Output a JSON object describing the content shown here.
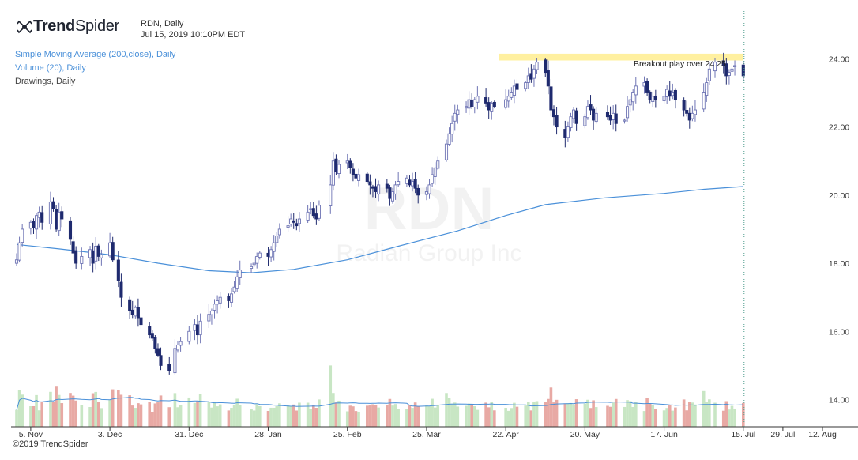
{
  "brand": {
    "name_bold": "Trend",
    "name_light": "Spider",
    "copyright": "©2019 TrendSpider"
  },
  "header": {
    "symbol_line": "RDN, Daily",
    "timestamp": "Jul 15, 2019 10:10PM EDT"
  },
  "indicators": [
    {
      "label": "Simple Moving Average (200,close), Daily",
      "color": "#4a90d9"
    },
    {
      "label": "Volume (20), Daily",
      "color": "#4a90d9"
    },
    {
      "label": "Drawings, Daily",
      "color": "#444444"
    }
  ],
  "watermark": {
    "ticker": "RDN",
    "company": "Radian Group Inc"
  },
  "colors": {
    "up": "#6e74b4",
    "down": "#1f2a6e",
    "sma": "#4a90d9",
    "vol_up": "#c8e6c4",
    "vol_down": "#e8a9a4",
    "zone": "#fff0a0"
  },
  "chart_data": {
    "type": "candlestick",
    "ylim": [
      13.2,
      25.4
    ],
    "y_ticks": [
      14.0,
      16.0,
      18.0,
      20.0,
      22.0,
      24.0
    ],
    "y_tick_labels": [
      "14.00",
      "16.00",
      "18.00",
      "20.00",
      "22.00",
      "24.00"
    ],
    "x_ticks": [
      {
        "date": "2018-11-05",
        "label": "5. Nov"
      },
      {
        "date": "2018-12-03",
        "label": "3. Dec"
      },
      {
        "date": "2018-12-31",
        "label": "31. Dec"
      },
      {
        "date": "2019-01-28",
        "label": "28. Jan"
      },
      {
        "date": "2019-02-25",
        "label": "25. Feb"
      },
      {
        "date": "2019-03-25",
        "label": "25. Mar"
      },
      {
        "date": "2019-04-22",
        "label": "22. Apr"
      },
      {
        "date": "2019-05-20",
        "label": "20. May"
      },
      {
        "date": "2019-06-17",
        "label": "17. Jun"
      },
      {
        "date": "2019-07-15",
        "label": "15. Jul"
      },
      {
        "date": "2019-07-29",
        "label": "29. Jul"
      },
      {
        "date": "2019-08-12",
        "label": "12. Aug"
      }
    ],
    "annotation": {
      "text": "Breakout play over 24.25",
      "from": "2019-04-23",
      "to": "2019-07-15",
      "level_low": 23.95,
      "level_high": 24.15
    },
    "current_date": "2019-07-15",
    "closes": [
      [
        "2018-10-31",
        18.1
      ],
      [
        "2018-11-01",
        18.6
      ],
      [
        "2018-11-02",
        19.0
      ],
      [
        "2018-11-05",
        19.2
      ],
      [
        "2018-11-06",
        19.05
      ],
      [
        "2018-11-07",
        19.4
      ],
      [
        "2018-11-08",
        19.5
      ],
      [
        "2018-11-09",
        19.2
      ],
      [
        "2018-11-12",
        19.8
      ],
      [
        "2018-11-13",
        19.6
      ],
      [
        "2018-11-14",
        19.0
      ],
      [
        "2018-11-15",
        19.5
      ],
      [
        "2018-11-16",
        19.3
      ],
      [
        "2018-11-19",
        18.7
      ],
      [
        "2018-11-20",
        18.3
      ],
      [
        "2018-11-21",
        18.0
      ],
      [
        "2018-11-23",
        18.2
      ],
      [
        "2018-11-26",
        18.4
      ],
      [
        "2018-11-27",
        18.0
      ],
      [
        "2018-11-28",
        18.5
      ],
      [
        "2018-11-29",
        18.2
      ],
      [
        "2018-11-30",
        18.25
      ],
      [
        "2018-12-03",
        18.6
      ],
      [
        "2018-12-04",
        18.1
      ],
      [
        "2018-12-06",
        17.5
      ],
      [
        "2018-12-07",
        17.0
      ],
      [
        "2018-12-10",
        16.6
      ],
      [
        "2018-12-11",
        16.5
      ],
      [
        "2018-12-12",
        16.7
      ],
      [
        "2018-12-13",
        16.4
      ],
      [
        "2018-12-14",
        16.2
      ],
      [
        "2018-12-17",
        15.9
      ],
      [
        "2018-12-18",
        15.8
      ],
      [
        "2018-12-19",
        15.5
      ],
      [
        "2018-12-20",
        15.3
      ],
      [
        "2018-12-21",
        15.0
      ],
      [
        "2018-12-24",
        14.85
      ],
      [
        "2018-12-26",
        15.5
      ],
      [
        "2018-12-27",
        15.6
      ],
      [
        "2018-12-28",
        15.7
      ],
      [
        "2018-12-31",
        16.0
      ],
      [
        "2019-01-02",
        16.2
      ],
      [
        "2019-01-03",
        15.9
      ],
      [
        "2019-01-04",
        16.3
      ],
      [
        "2019-01-07",
        16.5
      ],
      [
        "2019-01-08",
        16.6
      ],
      [
        "2019-01-09",
        16.8
      ],
      [
        "2019-01-10",
        16.9
      ],
      [
        "2019-01-11",
        17.0
      ],
      [
        "2019-01-14",
        16.9
      ],
      [
        "2019-01-15",
        17.1
      ],
      [
        "2019-01-16",
        17.3
      ],
      [
        "2019-01-17",
        17.6
      ],
      [
        "2019-01-18",
        17.8
      ],
      [
        "2019-01-22",
        17.9
      ],
      [
        "2019-01-23",
        18.0
      ],
      [
        "2019-01-24",
        18.2
      ],
      [
        "2019-01-25",
        18.3
      ],
      [
        "2019-01-28",
        18.2
      ],
      [
        "2019-01-29",
        18.4
      ],
      [
        "2019-01-30",
        18.6
      ],
      [
        "2019-01-31",
        18.8
      ],
      [
        "2019-02-01",
        19.0
      ],
      [
        "2019-02-04",
        19.1
      ],
      [
        "2019-02-05",
        19.3
      ],
      [
        "2019-02-06",
        19.2
      ],
      [
        "2019-02-07",
        19.1
      ],
      [
        "2019-02-08",
        19.3
      ],
      [
        "2019-02-11",
        19.5
      ],
      [
        "2019-02-12",
        19.6
      ],
      [
        "2019-02-13",
        19.4
      ],
      [
        "2019-02-14",
        19.3
      ],
      [
        "2019-02-15",
        19.7
      ],
      [
        "2019-02-19",
        20.3
      ],
      [
        "2019-02-20",
        21.0
      ],
      [
        "2019-02-21",
        20.7
      ],
      [
        "2019-02-22",
        20.9
      ],
      [
        "2019-02-25",
        21.0
      ],
      [
        "2019-02-26",
        20.8
      ],
      [
        "2019-02-27",
        20.6
      ],
      [
        "2019-02-28",
        20.5
      ],
      [
        "2019-03-01",
        20.6
      ],
      [
        "2019-03-04",
        20.4
      ],
      [
        "2019-03-05",
        20.3
      ],
      [
        "2019-03-06",
        20.2
      ],
      [
        "2019-03-07",
        20.1
      ],
      [
        "2019-03-08",
        20.3
      ],
      [
        "2019-03-11",
        20.2
      ],
      [
        "2019-03-12",
        19.9
      ],
      [
        "2019-03-13",
        20.1
      ],
      [
        "2019-03-14",
        20.3
      ],
      [
        "2019-03-15",
        20.4
      ],
      [
        "2019-03-18",
        20.5
      ],
      [
        "2019-03-19",
        20.3
      ],
      [
        "2019-03-20",
        20.4
      ],
      [
        "2019-03-21",
        20.2
      ],
      [
        "2019-03-22",
        20.0
      ],
      [
        "2019-03-25",
        20.1
      ],
      [
        "2019-03-26",
        20.3
      ],
      [
        "2019-03-27",
        20.6
      ],
      [
        "2019-03-28",
        20.8
      ],
      [
        "2019-03-29",
        21.0
      ],
      [
        "2019-04-01",
        21.5
      ],
      [
        "2019-04-02",
        21.8
      ],
      [
        "2019-04-03",
        22.1
      ],
      [
        "2019-04-04",
        22.4
      ],
      [
        "2019-04-05",
        22.5
      ],
      [
        "2019-04-08",
        22.6
      ],
      [
        "2019-04-09",
        22.8
      ],
      [
        "2019-04-10",
        22.6
      ],
      [
        "2019-04-11",
        22.8
      ],
      [
        "2019-04-12",
        22.9
      ],
      [
        "2019-04-15",
        22.7
      ],
      [
        "2019-04-16",
        22.5
      ],
      [
        "2019-04-17",
        22.7
      ],
      [
        "2019-04-18",
        22.6
      ],
      [
        "2019-04-22",
        22.8
      ],
      [
        "2019-04-23",
        22.9
      ],
      [
        "2019-04-24",
        23.0
      ],
      [
        "2019-04-25",
        23.2
      ],
      [
        "2019-04-26",
        23.1
      ],
      [
        "2019-04-29",
        23.3
      ],
      [
        "2019-04-30",
        23.5
      ],
      [
        "2019-05-01",
        23.4
      ],
      [
        "2019-05-02",
        23.7
      ],
      [
        "2019-05-03",
        23.9
      ],
      [
        "2019-05-06",
        23.6
      ],
      [
        "2019-05-07",
        23.2
      ],
      [
        "2019-05-08",
        22.5
      ],
      [
        "2019-05-09",
        22.3
      ],
      [
        "2019-05-10",
        22.0
      ],
      [
        "2019-05-13",
        21.7
      ],
      [
        "2019-05-14",
        22.0
      ],
      [
        "2019-05-15",
        22.3
      ],
      [
        "2019-05-16",
        22.5
      ],
      [
        "2019-05-17",
        22.1
      ],
      [
        "2019-05-20",
        22.3
      ],
      [
        "2019-05-21",
        22.6
      ],
      [
        "2019-05-22",
        22.5
      ],
      [
        "2019-05-23",
        22.2
      ],
      [
        "2019-05-24",
        22.4
      ],
      [
        "2019-05-28",
        22.3
      ],
      [
        "2019-05-29",
        22.2
      ],
      [
        "2019-05-30",
        22.4
      ],
      [
        "2019-05-31",
        22.1
      ],
      [
        "2019-06-03",
        22.2
      ],
      [
        "2019-06-04",
        22.6
      ],
      [
        "2019-06-05",
        22.8
      ],
      [
        "2019-06-06",
        23.0
      ],
      [
        "2019-06-07",
        23.2
      ],
      [
        "2019-06-10",
        23.3
      ],
      [
        "2019-06-11",
        23.0
      ],
      [
        "2019-06-12",
        22.8
      ],
      [
        "2019-06-13",
        22.9
      ],
      [
        "2019-06-14",
        22.8
      ],
      [
        "2019-06-17",
        22.9
      ],
      [
        "2019-06-18",
        23.1
      ],
      [
        "2019-06-19",
        22.9
      ],
      [
        "2019-06-20",
        23.0
      ],
      [
        "2019-06-21",
        22.8
      ],
      [
        "2019-06-24",
        22.5
      ],
      [
        "2019-06-25",
        22.4
      ],
      [
        "2019-06-26",
        22.2
      ],
      [
        "2019-06-27",
        22.4
      ],
      [
        "2019-06-28",
        22.5
      ],
      [
        "2019-07-01",
        23.0
      ],
      [
        "2019-07-02",
        23.3
      ],
      [
        "2019-07-03",
        23.7
      ],
      [
        "2019-07-05",
        23.9
      ],
      [
        "2019-07-08",
        23.8
      ],
      [
        "2019-07-09",
        23.5
      ],
      [
        "2019-07-10",
        23.6
      ],
      [
        "2019-07-11",
        23.7
      ],
      [
        "2019-07-12",
        23.8
      ],
      [
        "2019-07-15",
        23.5
      ]
    ],
    "sma": [
      [
        "2018-10-31",
        18.55
      ],
      [
        "2018-11-15",
        18.42
      ],
      [
        "2018-12-03",
        18.25
      ],
      [
        "2018-12-20",
        18.0
      ],
      [
        "2019-01-07",
        17.78
      ],
      [
        "2019-01-22",
        17.72
      ],
      [
        "2019-02-06",
        17.82
      ],
      [
        "2019-02-25",
        18.1
      ],
      [
        "2019-03-15",
        18.5
      ],
      [
        "2019-04-05",
        18.95
      ],
      [
        "2019-04-22",
        19.4
      ],
      [
        "2019-05-06",
        19.72
      ],
      [
        "2019-05-27",
        19.92
      ],
      [
        "2019-06-17",
        20.05
      ],
      [
        "2019-07-01",
        20.17
      ],
      [
        "2019-07-15",
        20.25
      ]
    ],
    "volume_max": 1.0
  }
}
